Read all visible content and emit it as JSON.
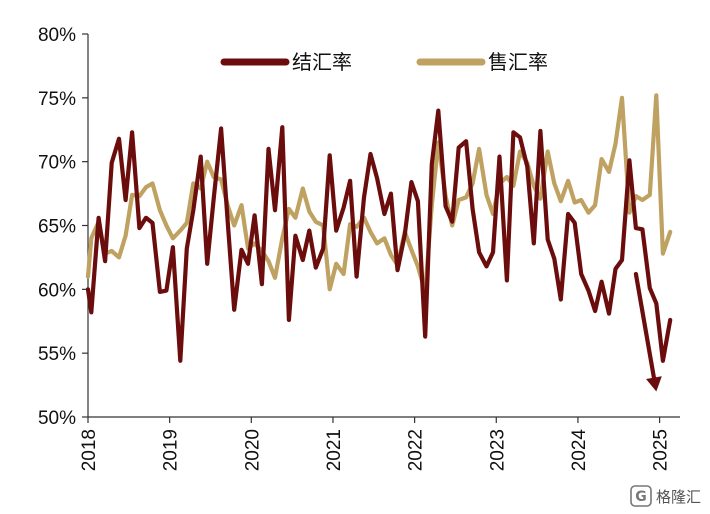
{
  "chart_data": {
    "type": "line",
    "title": "",
    "xlabel": "",
    "ylabel": "",
    "ylim": [
      50,
      80
    ],
    "xlim": [
      2018.0,
      2025.25
    ],
    "y_ticks": [
      {
        "value": 50,
        "label": "50%"
      },
      {
        "value": 55,
        "label": "55%"
      },
      {
        "value": 60,
        "label": "60%"
      },
      {
        "value": 65,
        "label": "65%"
      },
      {
        "value": 70,
        "label": "70%"
      },
      {
        "value": 75,
        "label": "75%"
      },
      {
        "value": 80,
        "label": "80%"
      }
    ],
    "x_ticks": [
      {
        "value": 2018,
        "label": "2018"
      },
      {
        "value": 2019,
        "label": "2019"
      },
      {
        "value": 2020,
        "label": "2020"
      },
      {
        "value": 2021,
        "label": "2021"
      },
      {
        "value": 2022,
        "label": "2022"
      },
      {
        "value": 2023,
        "label": "2023"
      },
      {
        "value": 2024,
        "label": "2024"
      },
      {
        "value": 2025,
        "label": "2025"
      }
    ],
    "grid": false,
    "legend_position": "top",
    "series": [
      {
        "name": "结汇率",
        "color": "#6b0d0d",
        "points": [
          [
            2018.0,
            60.0
          ],
          [
            2018.04,
            58.2
          ],
          [
            2018.13,
            65.6
          ],
          [
            2018.21,
            62.2
          ],
          [
            2018.29,
            69.9
          ],
          [
            2018.38,
            71.8
          ],
          [
            2018.46,
            67.0
          ],
          [
            2018.54,
            72.3
          ],
          [
            2018.63,
            64.8
          ],
          [
            2018.71,
            65.6
          ],
          [
            2018.79,
            65.2
          ],
          [
            2018.88,
            59.8
          ],
          [
            2018.96,
            59.9
          ],
          [
            2019.04,
            63.3
          ],
          [
            2019.13,
            54.4
          ],
          [
            2019.21,
            63.2
          ],
          [
            2019.29,
            66.2
          ],
          [
            2019.38,
            70.4
          ],
          [
            2019.46,
            62.0
          ],
          [
            2019.54,
            67.1
          ],
          [
            2019.63,
            72.6
          ],
          [
            2019.71,
            65.4
          ],
          [
            2019.79,
            58.4
          ],
          [
            2019.88,
            63.1
          ],
          [
            2019.96,
            62.0
          ],
          [
            2020.04,
            65.8
          ],
          [
            2020.13,
            60.4
          ],
          [
            2020.21,
            71.0
          ],
          [
            2020.29,
            66.2
          ],
          [
            2020.38,
            72.7
          ],
          [
            2020.46,
            57.6
          ],
          [
            2020.54,
            64.2
          ],
          [
            2020.63,
            62.3
          ],
          [
            2020.71,
            64.6
          ],
          [
            2020.79,
            61.7
          ],
          [
            2020.88,
            63.2
          ],
          [
            2020.96,
            70.5
          ],
          [
            2021.04,
            64.6
          ],
          [
            2021.13,
            66.4
          ],
          [
            2021.21,
            68.5
          ],
          [
            2021.29,
            61.0
          ],
          [
            2021.38,
            67.2
          ],
          [
            2021.46,
            70.6
          ],
          [
            2021.54,
            68.7
          ],
          [
            2021.63,
            65.9
          ],
          [
            2021.71,
            67.5
          ],
          [
            2021.79,
            61.5
          ],
          [
            2021.88,
            64.3
          ],
          [
            2021.96,
            68.4
          ],
          [
            2022.04,
            66.9
          ],
          [
            2022.13,
            56.3
          ],
          [
            2022.21,
            69.8
          ],
          [
            2022.29,
            74.0
          ],
          [
            2022.38,
            66.5
          ],
          [
            2022.46,
            65.3
          ],
          [
            2022.54,
            71.1
          ],
          [
            2022.63,
            71.6
          ],
          [
            2022.71,
            66.3
          ],
          [
            2022.79,
            62.9
          ],
          [
            2022.88,
            61.8
          ],
          [
            2022.96,
            62.9
          ],
          [
            2023.04,
            70.4
          ],
          [
            2023.13,
            60.7
          ],
          [
            2023.21,
            72.3
          ],
          [
            2023.29,
            71.9
          ],
          [
            2023.38,
            69.6
          ],
          [
            2023.46,
            63.6
          ],
          [
            2023.54,
            72.4
          ],
          [
            2023.63,
            63.9
          ],
          [
            2023.71,
            62.4
          ],
          [
            2023.79,
            59.2
          ],
          [
            2023.88,
            65.9
          ],
          [
            2023.96,
            65.2
          ],
          [
            2024.04,
            61.2
          ],
          [
            2024.13,
            59.9
          ],
          [
            2024.21,
            58.3
          ],
          [
            2024.29,
            60.6
          ],
          [
            2024.38,
            58.1
          ],
          [
            2024.46,
            61.6
          ],
          [
            2024.54,
            62.3
          ],
          [
            2024.63,
            70.1
          ],
          [
            2024.71,
            64.8
          ],
          [
            2024.79,
            64.7
          ],
          [
            2024.88,
            60.1
          ],
          [
            2024.96,
            58.9
          ],
          [
            2025.04,
            54.4
          ],
          [
            2025.13,
            57.6
          ]
        ]
      },
      {
        "name": "售汇率",
        "color": "#bfa162",
        "points": [
          [
            2018.0,
            61.0
          ],
          [
            2018.04,
            64.0
          ],
          [
            2018.13,
            65.3
          ],
          [
            2018.21,
            62.8
          ],
          [
            2018.29,
            63.0
          ],
          [
            2018.38,
            62.5
          ],
          [
            2018.46,
            64.2
          ],
          [
            2018.54,
            67.4
          ],
          [
            2018.63,
            67.3
          ],
          [
            2018.71,
            68.0
          ],
          [
            2018.79,
            68.3
          ],
          [
            2018.88,
            66.2
          ],
          [
            2018.96,
            65.0
          ],
          [
            2019.04,
            64.0
          ],
          [
            2019.13,
            64.6
          ],
          [
            2019.21,
            65.2
          ],
          [
            2019.29,
            68.3
          ],
          [
            2019.38,
            67.9
          ],
          [
            2019.46,
            70.0
          ],
          [
            2019.54,
            68.8
          ],
          [
            2019.63,
            68.6
          ],
          [
            2019.71,
            66.6
          ],
          [
            2019.79,
            65.0
          ],
          [
            2019.88,
            66.6
          ],
          [
            2019.96,
            63.2
          ],
          [
            2020.04,
            63.6
          ],
          [
            2020.13,
            63.0
          ],
          [
            2020.21,
            62.2
          ],
          [
            2020.29,
            60.9
          ],
          [
            2020.38,
            64.0
          ],
          [
            2020.46,
            66.3
          ],
          [
            2020.54,
            65.6
          ],
          [
            2020.63,
            67.9
          ],
          [
            2020.71,
            66.1
          ],
          [
            2020.79,
            65.3
          ],
          [
            2020.88,
            65.0
          ],
          [
            2020.96,
            60.0
          ],
          [
            2021.04,
            62.0
          ],
          [
            2021.13,
            61.2
          ],
          [
            2021.21,
            65.1
          ],
          [
            2021.29,
            64.9
          ],
          [
            2021.38,
            65.6
          ],
          [
            2021.46,
            64.5
          ],
          [
            2021.54,
            63.6
          ],
          [
            2021.63,
            64.0
          ],
          [
            2021.71,
            62.7
          ],
          [
            2021.79,
            61.9
          ],
          [
            2021.88,
            64.5
          ],
          [
            2021.96,
            63.1
          ],
          [
            2022.04,
            61.8
          ],
          [
            2022.13,
            59.8
          ],
          [
            2022.21,
            66.6
          ],
          [
            2022.29,
            71.5
          ],
          [
            2022.38,
            67.3
          ],
          [
            2022.46,
            65.0
          ],
          [
            2022.54,
            67.0
          ],
          [
            2022.63,
            67.2
          ],
          [
            2022.71,
            68.3
          ],
          [
            2022.79,
            71.0
          ],
          [
            2022.88,
            67.4
          ],
          [
            2022.96,
            65.9
          ],
          [
            2023.04,
            68.3
          ],
          [
            2023.13,
            68.8
          ],
          [
            2023.21,
            68.1
          ],
          [
            2023.29,
            70.8
          ],
          [
            2023.38,
            69.9
          ],
          [
            2023.46,
            68.1
          ],
          [
            2023.54,
            67.1
          ],
          [
            2023.63,
            70.8
          ],
          [
            2023.71,
            68.3
          ],
          [
            2023.79,
            66.9
          ],
          [
            2023.88,
            68.5
          ],
          [
            2023.96,
            66.8
          ],
          [
            2024.04,
            67.0
          ],
          [
            2024.13,
            66.0
          ],
          [
            2024.21,
            66.6
          ],
          [
            2024.29,
            70.2
          ],
          [
            2024.38,
            69.2
          ],
          [
            2024.46,
            71.4
          ],
          [
            2024.54,
            75.0
          ],
          [
            2024.63,
            66.0
          ],
          [
            2024.71,
            67.3
          ],
          [
            2024.79,
            67.0
          ],
          [
            2024.88,
            67.4
          ],
          [
            2024.96,
            75.2
          ],
          [
            2025.04,
            62.8
          ],
          [
            2025.13,
            64.5
          ]
        ]
      }
    ],
    "annotations": [
      {
        "type": "arrow",
        "from": [
          2024.71,
          61.2
        ],
        "to": [
          2024.96,
          52.0
        ],
        "color": "#6b0d0d"
      }
    ]
  },
  "watermark": {
    "text": "格隆汇",
    "icon": "logo-g-icon"
  }
}
